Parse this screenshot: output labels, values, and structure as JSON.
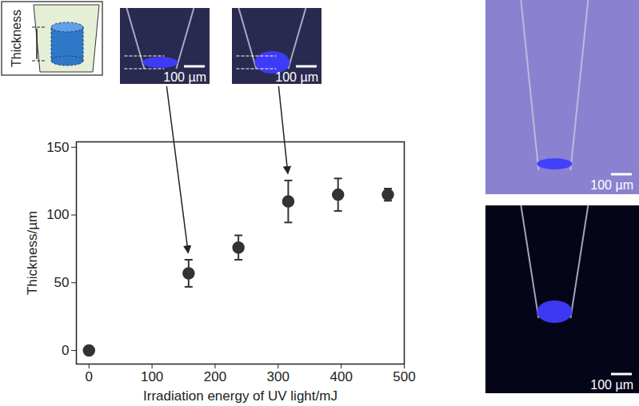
{
  "chart_data": {
    "type": "scatter",
    "x_label": "Irradiation energy of UV light/mJ",
    "y_label": "Thickness/µm",
    "x": [
      0,
      158,
      237,
      316,
      395,
      474
    ],
    "values": [
      0,
      57,
      76,
      110,
      115,
      115
    ],
    "errors": [
      0,
      10,
      9,
      15.5,
      12,
      4.5
    ],
    "color": "#333333",
    "marker": "circle",
    "xlim": [
      -20,
      500
    ],
    "ylim": [
      -10,
      154
    ],
    "xticks": [
      0,
      100,
      200,
      300,
      400,
      500
    ],
    "yticks": [
      0,
      50,
      100,
      150
    ],
    "grid": false
  },
  "insets": {
    "schematic_label": "Thickness",
    "photos": [
      {
        "scale_bar": "100 µm",
        "points_to_x": 158
      },
      {
        "scale_bar": "100 µm",
        "points_to_x": 316
      },
      {
        "scale_bar": "100 µm"
      },
      {
        "scale_bar": "100 µm"
      }
    ]
  }
}
